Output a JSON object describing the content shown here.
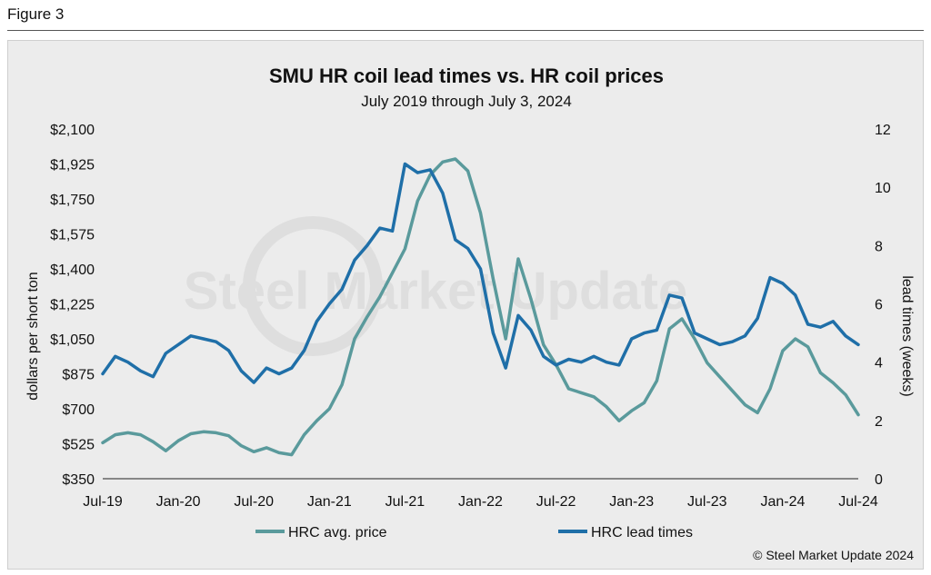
{
  "figure_label": "Figure 3",
  "chart_data": {
    "type": "line",
    "title": "SMU HR coil lead times vs. HR coil prices",
    "subtitle": "July 2019 through July 3, 2024",
    "ylabel": "dollars per short ton",
    "y2label": "lead times (weeks)",
    "ylim": [
      350,
      2100
    ],
    "y2lim": [
      0,
      12
    ],
    "yticks": [
      "$2,100",
      "$1,925",
      "$1,750",
      "$1,575",
      "$1,400",
      "$1,225",
      "$1,050",
      "$875",
      "$700",
      "$525",
      "$350"
    ],
    "yticks_values": [
      2100,
      1925,
      1750,
      1575,
      1400,
      1225,
      1050,
      875,
      700,
      525,
      350
    ],
    "y2ticks": [
      "12",
      "10",
      "8",
      "6",
      "4",
      "2",
      "0"
    ],
    "y2ticks_values": [
      12,
      10,
      8,
      6,
      4,
      2,
      0
    ],
    "x_ticks": [
      "Jul-19",
      "Jan-20",
      "Jul-20",
      "Jan-21",
      "Jul-21",
      "Jan-22",
      "Jul-22",
      "Jan-23",
      "Jul-23",
      "Jan-24",
      "Jul-24"
    ],
    "x_start": "2019-07",
    "x_end": "2024-07",
    "watermark": "Steel Market Update",
    "series": [
      {
        "name": "HRC avg. price",
        "axis": "left",
        "color": "#5a9a9c",
        "points": [
          [
            "2019-07",
            530
          ],
          [
            "2019-08",
            570
          ],
          [
            "2019-09",
            580
          ],
          [
            "2019-10",
            570
          ],
          [
            "2019-11",
            535
          ],
          [
            "2019-12",
            490
          ],
          [
            "2020-01",
            540
          ],
          [
            "2020-02",
            575
          ],
          [
            "2020-03",
            585
          ],
          [
            "2020-04",
            580
          ],
          [
            "2020-05",
            565
          ],
          [
            "2020-06",
            515
          ],
          [
            "2020-07",
            485
          ],
          [
            "2020-08",
            505
          ],
          [
            "2020-09",
            480
          ],
          [
            "2020-10",
            470
          ],
          [
            "2020-11",
            570
          ],
          [
            "2020-12",
            640
          ],
          [
            "2021-01",
            700
          ],
          [
            "2021-02",
            820
          ],
          [
            "2021-03",
            1050
          ],
          [
            "2021-04",
            1160
          ],
          [
            "2021-05",
            1260
          ],
          [
            "2021-06",
            1380
          ],
          [
            "2021-07",
            1500
          ],
          [
            "2021-08",
            1740
          ],
          [
            "2021-09",
            1870
          ],
          [
            "2021-10",
            1935
          ],
          [
            "2021-11",
            1950
          ],
          [
            "2021-12",
            1890
          ],
          [
            "2022-01",
            1680
          ],
          [
            "2022-02",
            1350
          ],
          [
            "2022-03",
            1050
          ],
          [
            "2022-04",
            1450
          ],
          [
            "2022-05",
            1250
          ],
          [
            "2022-06",
            1020
          ],
          [
            "2022-07",
            920
          ],
          [
            "2022-08",
            800
          ],
          [
            "2022-09",
            780
          ],
          [
            "2022-10",
            760
          ],
          [
            "2022-11",
            710
          ],
          [
            "2022-12",
            640
          ],
          [
            "2023-01",
            690
          ],
          [
            "2023-02",
            730
          ],
          [
            "2023-03",
            840
          ],
          [
            "2023-04",
            1100
          ],
          [
            "2023-05",
            1150
          ],
          [
            "2023-06",
            1050
          ],
          [
            "2023-07",
            930
          ],
          [
            "2023-08",
            860
          ],
          [
            "2023-09",
            790
          ],
          [
            "2023-10",
            720
          ],
          [
            "2023-11",
            680
          ],
          [
            "2023-12",
            800
          ],
          [
            "2024-01",
            990
          ],
          [
            "2024-02",
            1050
          ],
          [
            "2024-03",
            1010
          ],
          [
            "2024-04",
            880
          ],
          [
            "2024-05",
            830
          ],
          [
            "2024-06",
            770
          ],
          [
            "2024-07",
            670
          ]
        ]
      },
      {
        "name": "HRC lead times",
        "axis": "right",
        "color": "#1f6fa8",
        "points": [
          [
            "2019-07",
            3.6
          ],
          [
            "2019-08",
            4.2
          ],
          [
            "2019-09",
            4.0
          ],
          [
            "2019-10",
            3.7
          ],
          [
            "2019-11",
            3.5
          ],
          [
            "2019-12",
            4.3
          ],
          [
            "2020-01",
            4.6
          ],
          [
            "2020-02",
            4.9
          ],
          [
            "2020-03",
            4.8
          ],
          [
            "2020-04",
            4.7
          ],
          [
            "2020-05",
            4.4
          ],
          [
            "2020-06",
            3.7
          ],
          [
            "2020-07",
            3.3
          ],
          [
            "2020-08",
            3.8
          ],
          [
            "2020-09",
            3.6
          ],
          [
            "2020-10",
            3.8
          ],
          [
            "2020-11",
            4.4
          ],
          [
            "2020-12",
            5.4
          ],
          [
            "2021-01",
            6.0
          ],
          [
            "2021-02",
            6.5
          ],
          [
            "2021-03",
            7.5
          ],
          [
            "2021-04",
            8.0
          ],
          [
            "2021-05",
            8.6
          ],
          [
            "2021-06",
            8.5
          ],
          [
            "2021-07",
            10.8
          ],
          [
            "2021-08",
            10.5
          ],
          [
            "2021-09",
            10.6
          ],
          [
            "2021-10",
            9.8
          ],
          [
            "2021-11",
            8.2
          ],
          [
            "2021-12",
            7.9
          ],
          [
            "2022-01",
            7.2
          ],
          [
            "2022-02",
            5.0
          ],
          [
            "2022-03",
            3.8
          ],
          [
            "2022-04",
            5.6
          ],
          [
            "2022-05",
            5.1
          ],
          [
            "2022-06",
            4.2
          ],
          [
            "2022-07",
            3.9
          ],
          [
            "2022-08",
            4.1
          ],
          [
            "2022-09",
            4.0
          ],
          [
            "2022-10",
            4.2
          ],
          [
            "2022-11",
            4.0
          ],
          [
            "2022-12",
            3.9
          ],
          [
            "2023-01",
            4.8
          ],
          [
            "2023-02",
            5.0
          ],
          [
            "2023-03",
            5.1
          ],
          [
            "2023-04",
            6.3
          ],
          [
            "2023-05",
            6.2
          ],
          [
            "2023-06",
            5.0
          ],
          [
            "2023-07",
            4.8
          ],
          [
            "2023-08",
            4.6
          ],
          [
            "2023-09",
            4.7
          ],
          [
            "2023-10",
            4.9
          ],
          [
            "2023-11",
            5.5
          ],
          [
            "2023-12",
            6.9
          ],
          [
            "2024-01",
            6.7
          ],
          [
            "2024-02",
            6.3
          ],
          [
            "2024-03",
            5.3
          ],
          [
            "2024-04",
            5.2
          ],
          [
            "2024-05",
            5.4
          ],
          [
            "2024-06",
            4.9
          ],
          [
            "2024-07",
            4.6
          ]
        ]
      }
    ],
    "credit": "© Steel Market Update 2024"
  }
}
